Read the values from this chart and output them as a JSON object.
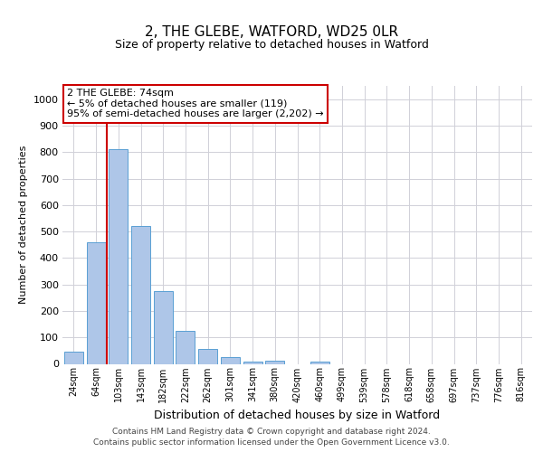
{
  "title1": "2, THE GLEBE, WATFORD, WD25 0LR",
  "title2": "Size of property relative to detached houses in Watford",
  "xlabel": "Distribution of detached houses by size in Watford",
  "ylabel": "Number of detached properties",
  "categories": [
    "24sqm",
    "64sqm",
    "103sqm",
    "143sqm",
    "182sqm",
    "222sqm",
    "262sqm",
    "301sqm",
    "341sqm",
    "380sqm",
    "420sqm",
    "460sqm",
    "499sqm",
    "539sqm",
    "578sqm",
    "618sqm",
    "658sqm",
    "697sqm",
    "737sqm",
    "776sqm",
    "816sqm"
  ],
  "values": [
    45,
    460,
    810,
    520,
    275,
    125,
    58,
    25,
    10,
    13,
    0,
    8,
    0,
    0,
    0,
    0,
    0,
    0,
    0,
    0,
    0
  ],
  "bar_color": "#aec6e8",
  "bar_edge_color": "#5a9fd4",
  "marker_color": "#cc0000",
  "ylim": [
    0,
    1050
  ],
  "yticks": [
    0,
    100,
    200,
    300,
    400,
    500,
    600,
    700,
    800,
    900,
    1000
  ],
  "annotation_text": "2 THE GLEBE: 74sqm\n← 5% of detached houses are smaller (119)\n95% of semi-detached houses are larger (2,202) →",
  "annotation_box_color": "#ffffff",
  "annotation_box_edge": "#cc0000",
  "footer1": "Contains HM Land Registry data © Crown copyright and database right 2024.",
  "footer2": "Contains public sector information licensed under the Open Government Licence v3.0.",
  "background_color": "#ffffff",
  "grid_color": "#d0d0d8"
}
